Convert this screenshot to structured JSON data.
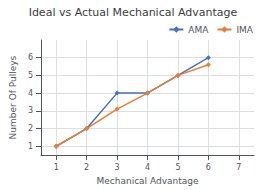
{
  "chart_data": {
    "type": "line",
    "title": "Ideal vs Actual Mechanical Advantage",
    "xlabel": "Mechanical Advantage",
    "ylabel": "Number Of Pulleys",
    "x": [
      1,
      2,
      3,
      4,
      5,
      6
    ],
    "series": [
      {
        "name": "AMA",
        "color": "#4472C4",
        "marker": "diamond",
        "values": [
          1,
          2,
          4,
          4,
          5,
          6
        ]
      },
      {
        "name": "IMA",
        "color": "#ED7D31",
        "marker": "diamond",
        "values": [
          1,
          2,
          3.1,
          4,
          5,
          5.6
        ]
      }
    ],
    "xlim": [
      0.5,
      7.5
    ],
    "xticks": [
      1,
      2,
      3,
      4,
      5,
      6,
      7
    ],
    "ylim": [
      0.5,
      7
    ],
    "yticks": [
      1,
      2,
      3,
      4,
      5,
      6
    ],
    "grid": true,
    "legend": "upper right"
  }
}
